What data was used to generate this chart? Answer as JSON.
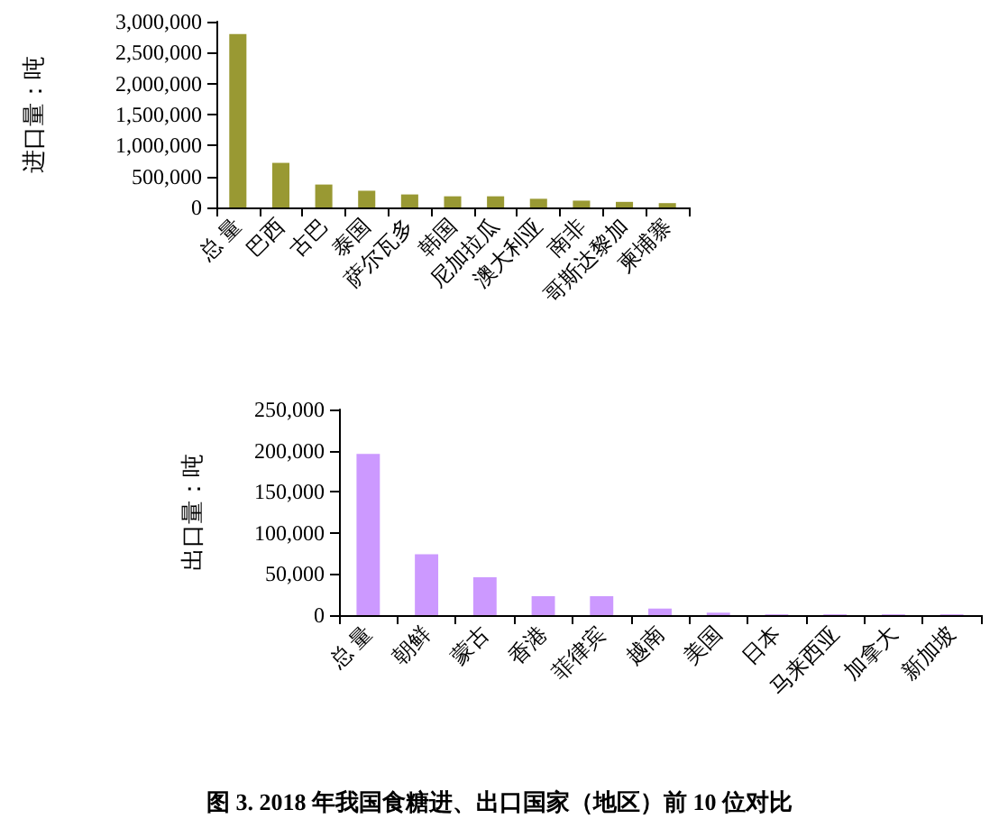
{
  "chart_data": [
    {
      "type": "bar",
      "ylabel": "进口量：吨",
      "categories": [
        "总 量",
        "巴西",
        "古巴",
        "泰国",
        "萨尔瓦多",
        "韩国",
        "尼加拉瓜",
        "澳大利亚",
        "南非",
        "哥斯达黎加",
        "柬埔寨"
      ],
      "values": [
        2800000,
        720000,
        370000,
        270000,
        210000,
        180000,
        180000,
        140000,
        110000,
        90000,
        70000
      ],
      "color": "#999933",
      "ylim": [
        0,
        3000000
      ],
      "yticks": [
        0,
        {
          "value": 500000,
          "label": "500,000"
        },
        {
          "value": 1000000,
          "label": "1,000,000"
        },
        {
          "value": 1500000,
          "label": "1,500,000"
        },
        {
          "value": 2000000,
          "label": "2,000,000"
        },
        {
          "value": 2500000,
          "label": "2,500,000"
        },
        {
          "value": 3000000,
          "label": "3,000,000"
        }
      ],
      "grid": false
    },
    {
      "type": "bar",
      "ylabel": "出口量：吨",
      "categories": [
        "总 量",
        "朝鲜",
        "蒙古",
        "香港",
        "菲律宾",
        "越南",
        "美国",
        "日本",
        "马来西亚",
        "加拿大",
        "新加坡"
      ],
      "values": [
        196000,
        74000,
        46000,
        23000,
        23000,
        8000,
        3000,
        1000,
        1000,
        1000,
        1000
      ],
      "color": "#cc99ff",
      "ylim": [
        0,
        250000
      ],
      "yticks": [
        0,
        {
          "value": 50000,
          "label": "50,000"
        },
        {
          "value": 100000,
          "label": "100,000"
        },
        {
          "value": 150000,
          "label": "150,000"
        },
        {
          "value": 200000,
          "label": "200,000"
        },
        {
          "value": 250000,
          "label": "250,000"
        }
      ],
      "grid": false,
      "annotations": [
        "图 3. 2018 年我国食糖进、出口国家（地区）前 10 位对比"
      ]
    }
  ]
}
